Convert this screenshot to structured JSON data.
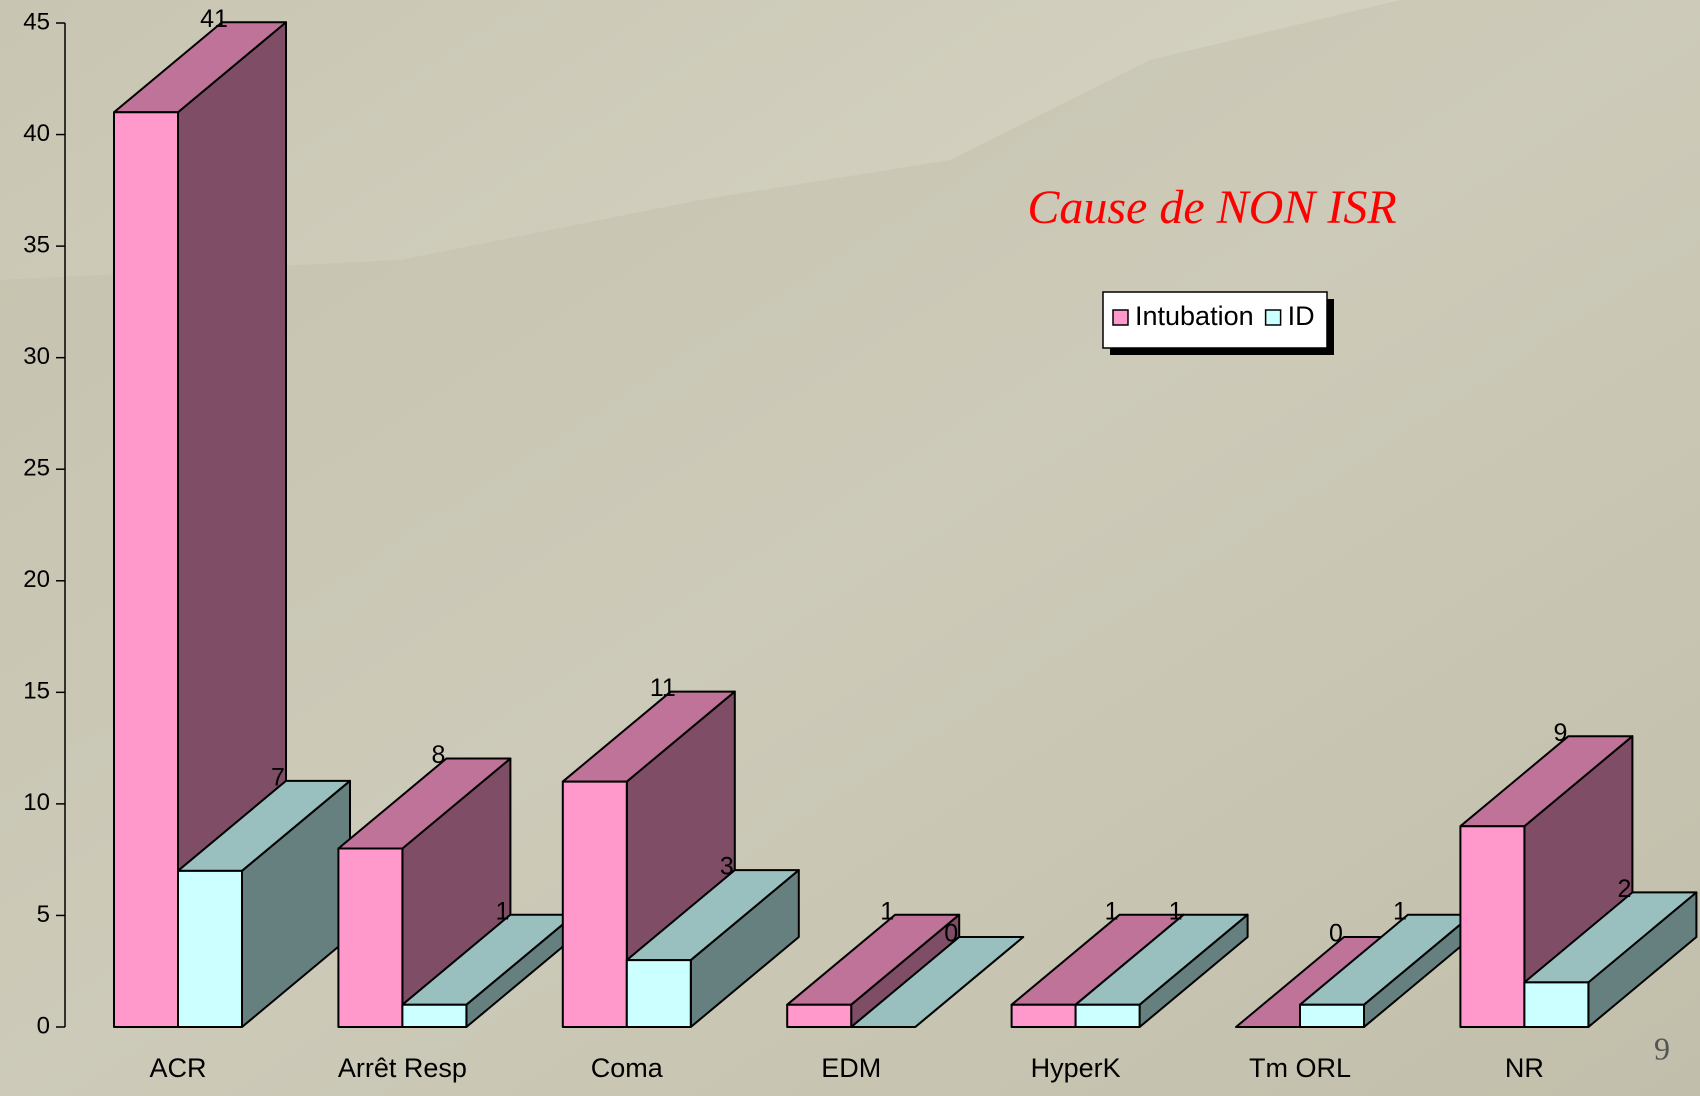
{
  "chart_data": {
    "type": "bar3d",
    "title": "Cause de NON ISR",
    "categories": [
      "ACR",
      "Arrêt Resp",
      "Coma",
      "EDM",
      "HyperK",
      "Tm ORL",
      "NR"
    ],
    "series": [
      {
        "name": "Intubation",
        "color": "#ff99cc",
        "values": [
          41,
          8,
          11,
          1,
          1,
          0,
          9
        ]
      },
      {
        "name": "ID",
        "color": "#ccffff",
        "values": [
          7,
          1,
          3,
          0,
          1,
          1,
          2
        ]
      }
    ],
    "ylim": [
      0,
      45
    ],
    "yticks": [
      0,
      5,
      10,
      15,
      20,
      25,
      30,
      35,
      40,
      45
    ],
    "legend": "top-right"
  },
  "slide_number": "9"
}
